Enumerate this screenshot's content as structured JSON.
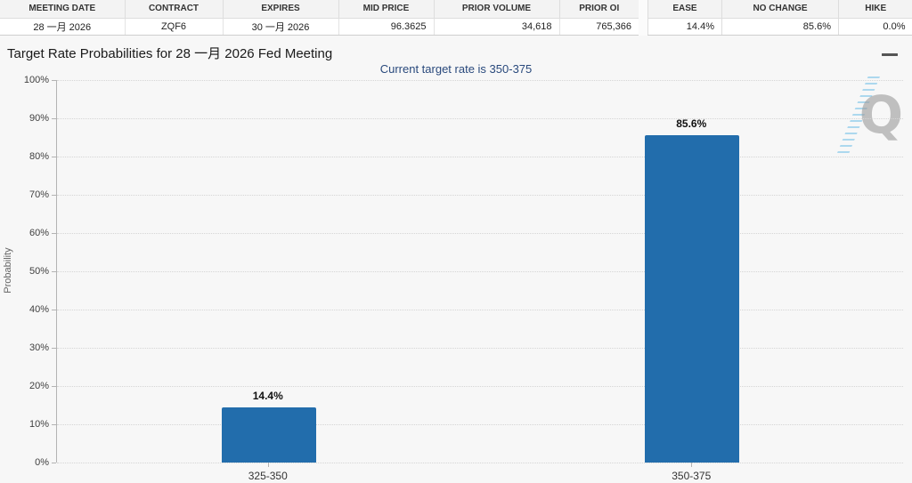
{
  "quote_table": {
    "columns": [
      "MEETING DATE",
      "CONTRACT",
      "EXPIRES",
      "MID PRICE",
      "PRIOR VOLUME",
      "PRIOR OI"
    ],
    "row": [
      "28 一月 2026",
      "ZQF6",
      "30 一月 2026",
      "96.3625",
      "34,618",
      "765,366"
    ]
  },
  "probability_table": {
    "columns": [
      "EASE",
      "NO CHANGE",
      "HIKE"
    ],
    "row": [
      "14.4%",
      "85.6%",
      "0.0%"
    ]
  },
  "chart": {
    "title": "Target Rate Probabilities for 28 一月 2026 Fed Meeting",
    "subtitle": "Current target rate is 350-375",
    "watermark_letter": "Q"
  },
  "chart_data": {
    "type": "bar",
    "title": "Target Rate Probabilities for 28 一月 2026 Fed Meeting",
    "subtitle": "Current target rate is 350-375",
    "categories": [
      "325-350",
      "350-375"
    ],
    "values": [
      14.4,
      85.6
    ],
    "value_labels": [
      "14.4%",
      "85.6%"
    ],
    "xlabel": "",
    "ylabel": "Probability",
    "ylim": [
      0,
      100
    ],
    "ytick_step": 10,
    "ytick_labels": [
      "0%",
      "10%",
      "20%",
      "30%",
      "40%",
      "50%",
      "60%",
      "70%",
      "80%",
      "90%",
      "100%"
    ],
    "bar_color": "#226dac",
    "grid": "horizontal-dotted",
    "legend": "none"
  }
}
